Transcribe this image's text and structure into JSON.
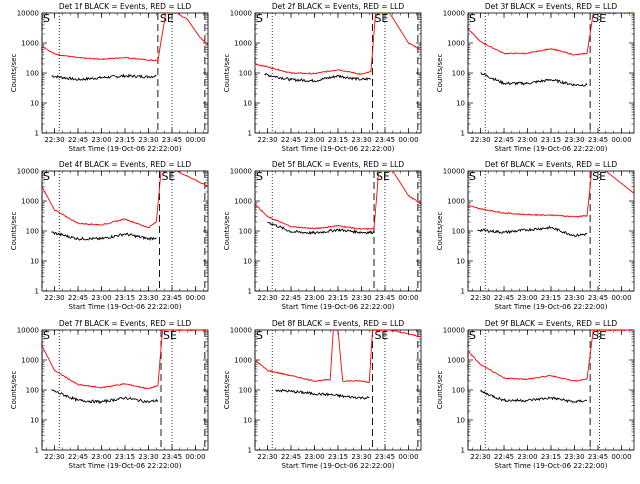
{
  "figure": {
    "title_prefix": "Det ",
    "title_suffix": "f BLACK = Events, RED = LLD",
    "xlabel": "Start Time (19-Oct-06 22:22:00)",
    "ylabel": "Counts/sec",
    "xticks": [
      "22:30",
      "22:45",
      "23:00",
      "23:15",
      "23:30",
      "23:45",
      "00:00"
    ],
    "yticks": [
      "1",
      "10",
      "100",
      "1000",
      "10000"
    ],
    "markers": [
      "S",
      "SE"
    ],
    "colors": {
      "events": "#000000",
      "lld": "#ff0000"
    }
  },
  "chart_data": [
    {
      "type": "line",
      "title": "Det 1f BLACK = Events, RED = LLD",
      "xlabel": "Start Time (19-Oct-06 22:22:00)",
      "ylabel": "Counts/sec",
      "ylim": [
        1,
        10000
      ],
      "yscale": "log",
      "x_range": [
        "22:22",
        "00:08"
      ],
      "series": [
        {
          "name": "Events",
          "points": [
            [
              "22:28",
              80
            ],
            [
              "22:45",
              60
            ],
            [
              "23:00",
              70
            ],
            [
              "23:15",
              80
            ],
            [
              "23:30",
              75
            ],
            [
              "23:35",
              80
            ]
          ]
        },
        {
          "name": "LLD",
          "points": [
            [
              "22:22",
              800
            ],
            [
              "22:30",
              430
            ],
            [
              "22:45",
              320
            ],
            [
              "23:00",
              290
            ],
            [
              "23:15",
              330
            ],
            [
              "23:30",
              270
            ],
            [
              "23:36",
              260
            ],
            [
              "23:41",
              10000
            ],
            [
              "23:48",
              10000
            ],
            [
              "23:55",
              6000
            ],
            [
              "00:03",
              1500
            ],
            [
              "00:08",
              900
            ]
          ]
        }
      ],
      "vlines_dashed": [
        "22:22",
        "23:36",
        "00:06"
      ],
      "vlines_dotted": [
        "22:33",
        "23:45"
      ]
    },
    {
      "type": "line",
      "title": "Det 2f BLACK = Events, RED = LLD",
      "xlabel": "Start Time (19-Oct-06 22:22:00)",
      "ylabel": "Counts/sec",
      "ylim": [
        1,
        10000
      ],
      "yscale": "log",
      "x_range": [
        "22:22",
        "00:08"
      ],
      "series": [
        {
          "name": "Events",
          "points": [
            [
              "22:28",
              90
            ],
            [
              "22:45",
              60
            ],
            [
              "23:00",
              55
            ],
            [
              "23:15",
              80
            ],
            [
              "23:30",
              60
            ],
            [
              "23:36",
              65
            ]
          ]
        },
        {
          "name": "LLD",
          "points": [
            [
              "22:22",
              200
            ],
            [
              "22:30",
              160
            ],
            [
              "22:45",
              100
            ],
            [
              "23:00",
              95
            ],
            [
              "23:15",
              130
            ],
            [
              "23:30",
              90
            ],
            [
              "23:36",
              110
            ],
            [
              "23:39",
              10000
            ],
            [
              "23:48",
              10000
            ],
            [
              "00:00",
              1000
            ],
            [
              "00:08",
              600
            ]
          ]
        }
      ],
      "vlines_dashed": [
        "22:22",
        "23:37",
        "00:06"
      ],
      "vlines_dotted": [
        "22:33",
        "23:45"
      ]
    },
    {
      "type": "line",
      "title": "Det 3f BLACK = Events, RED = LLD",
      "xlabel": "Start Time (19-Oct-06 22:22:00)",
      "ylabel": "Counts/sec",
      "ylim": [
        1,
        10000
      ],
      "yscale": "log",
      "x_range": [
        "22:22",
        "00:08"
      ],
      "series": [
        {
          "name": "Events",
          "points": [
            [
              "22:30",
              100
            ],
            [
              "22:45",
              45
            ],
            [
              "23:00",
              45
            ],
            [
              "23:15",
              60
            ],
            [
              "23:30",
              40
            ],
            [
              "23:38",
              40
            ]
          ]
        },
        {
          "name": "LLD",
          "points": [
            [
              "22:22",
              3000
            ],
            [
              "22:30",
              1100
            ],
            [
              "22:45",
              450
            ],
            [
              "23:00",
              450
            ],
            [
              "23:15",
              650
            ],
            [
              "23:30",
              400
            ],
            [
              "23:38",
              450
            ],
            [
              "23:42",
              10000
            ],
            [
              "23:48",
              10000
            ],
            [
              "00:08",
              10000
            ]
          ]
        }
      ],
      "vlines_dashed": [
        "22:22",
        "23:40"
      ],
      "vlines_dotted": [
        "22:33",
        "23:46"
      ]
    },
    {
      "type": "line",
      "title": "Det 4f BLACK = Events, RED = LLD",
      "xlabel": "Start Time (19-Oct-06 22:22:00)",
      "ylabel": "Counts/sec",
      "ylim": [
        1,
        10000
      ],
      "yscale": "log",
      "x_range": [
        "22:22",
        "00:08"
      ],
      "series": [
        {
          "name": "Events",
          "points": [
            [
              "22:28",
              90
            ],
            [
              "22:45",
              55
            ],
            [
              "23:00",
              55
            ],
            [
              "23:15",
              80
            ],
            [
              "23:30",
              55
            ],
            [
              "23:35",
              60
            ]
          ]
        },
        {
          "name": "LLD",
          "points": [
            [
              "22:22",
              3000
            ],
            [
              "22:30",
              500
            ],
            [
              "22:45",
              180
            ],
            [
              "23:00",
              160
            ],
            [
              "23:15",
              250
            ],
            [
              "23:30",
              130
            ],
            [
              "23:35",
              200
            ],
            [
              "23:38",
              10000
            ],
            [
              "23:48",
              10000
            ],
            [
              "00:00",
              5000
            ],
            [
              "00:08",
              3000
            ]
          ]
        }
      ],
      "vlines_dashed": [
        "22:22",
        "23:37",
        "00:06"
      ],
      "vlines_dotted": [
        "22:33",
        "23:45"
      ]
    },
    {
      "type": "line",
      "title": "Det 5f BLACK = Events, RED = LLD",
      "xlabel": "Start Time (19-Oct-06 22:22:00)",
      "ylabel": "Counts/sec",
      "ylim": [
        1,
        10000
      ],
      "yscale": "log",
      "x_range": [
        "22:22",
        "00:08"
      ],
      "series": [
        {
          "name": "Events",
          "points": [
            [
              "22:30",
              200
            ],
            [
              "22:45",
              95
            ],
            [
              "23:00",
              85
            ],
            [
              "23:15",
              110
            ],
            [
              "23:30",
              90
            ],
            [
              "23:38",
              90
            ]
          ]
        },
        {
          "name": "LLD",
          "points": [
            [
              "22:22",
              800
            ],
            [
              "22:30",
              300
            ],
            [
              "22:45",
              140
            ],
            [
              "23:00",
              120
            ],
            [
              "23:15",
              150
            ],
            [
              "23:30",
              115
            ],
            [
              "23:38",
              120
            ],
            [
              "23:41",
              10000
            ],
            [
              "23:50",
              10000
            ],
            [
              "00:00",
              1500
            ],
            [
              "00:08",
              800
            ]
          ]
        }
      ],
      "vlines_dashed": [
        "22:22",
        "23:38",
        "00:06"
      ],
      "vlines_dotted": [
        "22:33",
        "23:45"
      ]
    },
    {
      "type": "line",
      "title": "Det 6f BLACK = Events, RED = LLD",
      "xlabel": "Start Time (19-Oct-06 22:22:00)",
      "ylabel": "Counts/sec",
      "ylim": [
        1,
        10000
      ],
      "yscale": "log",
      "x_range": [
        "22:22",
        "00:08"
      ],
      "series": [
        {
          "name": "Events",
          "points": [
            [
              "22:28",
              110
            ],
            [
              "22:45",
              90
            ],
            [
              "23:00",
              110
            ],
            [
              "23:15",
              130
            ],
            [
              "23:30",
              70
            ],
            [
              "23:38",
              80
            ]
          ]
        },
        {
          "name": "LLD",
          "points": [
            [
              "22:22",
              700
            ],
            [
              "22:30",
              550
            ],
            [
              "22:45",
              400
            ],
            [
              "23:00",
              350
            ],
            [
              "23:15",
              340
            ],
            [
              "23:30",
              300
            ],
            [
              "23:38",
              320
            ],
            [
              "23:41",
              10000
            ],
            [
              "23:50",
              10000
            ],
            [
              "00:08",
              1800
            ]
          ]
        }
      ],
      "vlines_dashed": [
        "22:22",
        "23:40"
      ],
      "vlines_dotted": [
        "22:33",
        "23:46"
      ]
    },
    {
      "type": "line",
      "title": "Det 7f BLACK = Events, RED = LLD",
      "xlabel": "Start Time (19-Oct-06 22:22:00)",
      "ylabel": "Counts/sec",
      "ylim": [
        1,
        10000
      ],
      "yscale": "log",
      "x_range": [
        "22:22",
        "00:08"
      ],
      "series": [
        {
          "name": "Events",
          "points": [
            [
              "22:28",
              100
            ],
            [
              "22:45",
              45
            ],
            [
              "23:00",
              40
            ],
            [
              "23:15",
              55
            ],
            [
              "23:30",
              40
            ],
            [
              "23:36",
              45
            ]
          ]
        },
        {
          "name": "LLD",
          "points": [
            [
              "22:22",
              3000
            ],
            [
              "22:30",
              450
            ],
            [
              "22:45",
              150
            ],
            [
              "23:00",
              120
            ],
            [
              "23:15",
              160
            ],
            [
              "23:30",
              110
            ],
            [
              "23:36",
              140
            ],
            [
              "23:39",
              10000
            ],
            [
              "23:50",
              10000
            ],
            [
              "00:08",
              10000
            ]
          ]
        }
      ],
      "vlines_dashed": [
        "22:22",
        "23:38",
        "00:06"
      ],
      "vlines_dotted": [
        "22:33",
        "23:45"
      ]
    },
    {
      "type": "line",
      "title": "Det 8f BLACK = Events, RED = LLD",
      "xlabel": "Start Time (19-Oct-06 22:22:00)",
      "ylabel": "Counts/sec",
      "ylim": [
        1,
        10000
      ],
      "yscale": "log",
      "x_range": [
        "22:22",
        "00:08"
      ],
      "series": [
        {
          "name": "Events",
          "points": [
            [
              "22:35",
              100
            ],
            [
              "22:45",
              90
            ],
            [
              "23:00",
              75
            ],
            [
              "23:10",
              70
            ],
            [
              "23:20",
              60
            ],
            [
              "23:30",
              55
            ],
            [
              "23:35",
              55
            ]
          ]
        },
        {
          "name": "LLD",
          "points": [
            [
              "22:22",
              1000
            ],
            [
              "22:30",
              450
            ],
            [
              "22:45",
              300
            ],
            [
              "23:00",
              200
            ],
            [
              "23:10",
              220
            ],
            [
              "23:12",
              10000
            ],
            [
              "23:15",
              10000
            ],
            [
              "23:18",
              200
            ],
            [
              "23:30",
              200
            ],
            [
              "23:35",
              180
            ],
            [
              "23:37",
              10000
            ],
            [
              "23:48",
              10000
            ],
            [
              "00:08",
              6000
            ]
          ]
        }
      ],
      "vlines_dashed": [
        "22:22",
        "23:37",
        "00:06"
      ],
      "vlines_dotted": [
        "22:33",
        "23:45"
      ]
    },
    {
      "type": "line",
      "title": "Det 9f BLACK = Events, RED = LLD",
      "xlabel": "Start Time (19-Oct-06 22:22:00)",
      "ylabel": "Counts/sec",
      "ylim": [
        1,
        10000
      ],
      "yscale": "log",
      "x_range": [
        "22:22",
        "00:08"
      ],
      "series": [
        {
          "name": "Events",
          "points": [
            [
              "22:30",
              90
            ],
            [
              "22:45",
              45
            ],
            [
              "23:00",
              45
            ],
            [
              "23:15",
              55
            ],
            [
              "23:30",
              40
            ],
            [
              "23:38",
              45
            ]
          ]
        },
        {
          "name": "LLD",
          "points": [
            [
              "22:22",
              2000
            ],
            [
              "22:30",
              700
            ],
            [
              "22:45",
              250
            ],
            [
              "23:00",
              230
            ],
            [
              "23:15",
              300
            ],
            [
              "23:30",
              200
            ],
            [
              "23:38",
              230
            ],
            [
              "23:42",
              10000
            ],
            [
              "23:50",
              10000
            ],
            [
              "00:08",
              10000
            ]
          ]
        }
      ],
      "vlines_dashed": [
        "22:22",
        "23:40"
      ],
      "vlines_dotted": [
        "22:33",
        "23:46"
      ]
    }
  ]
}
